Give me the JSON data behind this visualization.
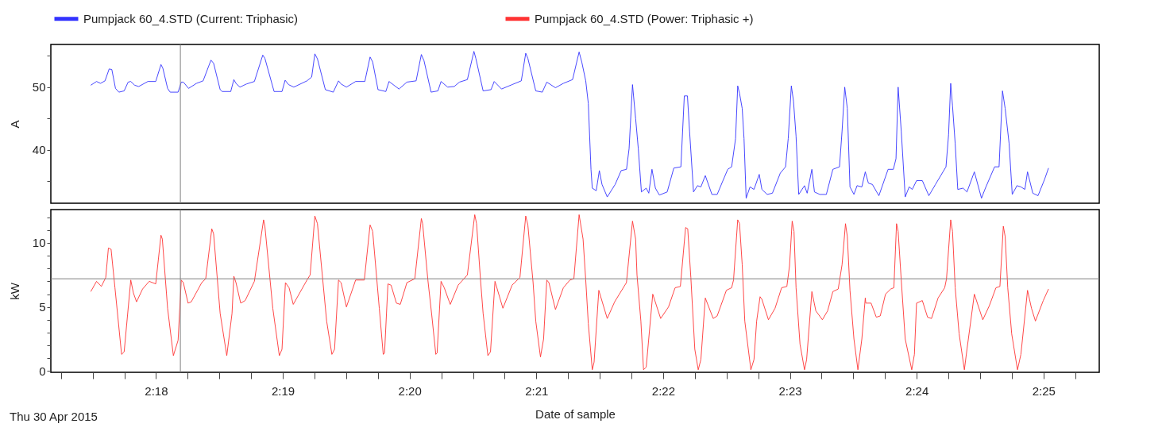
{
  "chart_data": [
    {
      "type": "line",
      "ylabel": "A",
      "legend": "top",
      "tick_labels": "y",
      "xlim": [
        2.28617,
        2.424
      ],
      "ylim": [
        31.5,
        56.8
      ],
      "yticks": [
        {
          "value": 35,
          "label": null
        },
        40,
        {
          "value": 45,
          "label": null
        },
        50,
        {
          "value": 55,
          "label": null
        }
      ],
      "ref_lines": [
        {
          "axis": "x",
          "value": 2.3032,
          "color": "#808080"
        }
      ],
      "series": [
        {
          "name": "Pumpjack 60_4.STD (Current: Triphasic)",
          "color": "#3333ff",
          "x": [
            2.29142,
            2.29218,
            2.2927,
            2.29329,
            2.29384,
            2.29419,
            2.29467,
            2.29512,
            2.29581,
            2.29633,
            2.29668,
            2.2972,
            2.29772,
            2.29893,
            2.29996,
            2.30065,
            2.3009,
            2.30152,
            2.30186,
            2.3029,
            2.30332,
            2.30359,
            2.30428,
            2.30532,
            2.30619,
            2.30722,
            2.30757,
            2.30843,
            2.30871,
            2.30982,
            2.31023,
            2.31051,
            2.31103,
            2.31189,
            2.31293,
            2.31403,
            2.31431,
            2.31552,
            2.31656,
            2.31697,
            2.31742,
            2.31811,
            2.31984,
            2.32046,
            2.32088,
            2.32122,
            2.32226,
            2.3233,
            2.32399,
            2.32433,
            2.32503,
            2.32624,
            2.32745,
            2.32814,
            2.32848,
            2.32918,
            2.33021,
            2.33063,
            2.33194,
            2.33298,
            2.33419,
            2.33488,
            2.33523,
            2.33616,
            2.33706,
            2.33747,
            2.33834,
            2.3392,
            2.33989,
            2.34093,
            2.34179,
            2.34204,
            2.343,
            2.34404,
            2.34446,
            2.34542,
            2.34681,
            2.34802,
            2.3486,
            2.34888,
            2.34992,
            2.35078,
            2.35137,
            2.35251,
            2.35355,
            2.35476,
            2.35562,
            2.35597,
            2.35649,
            2.35683,
            2.35718,
            2.35735,
            2.35787,
            2.35828,
            2.35863,
            2.35932,
            2.36036,
            2.36115,
            2.36185,
            2.36219,
            2.36264,
            2.36305,
            2.3634,
            2.36381,
            2.36444,
            2.36478,
            2.3652,
            2.36565,
            2.36617,
            2.3672,
            2.36807,
            2.369,
            2.36945,
            2.36986,
            2.37014,
            2.37066,
            2.37118,
            2.37163,
            2.37221,
            2.37308,
            2.37377,
            2.37446,
            2.37516,
            2.37567,
            2.37619,
            2.37647,
            2.37671,
            2.37706,
            2.3773,
            2.37758,
            2.37809,
            2.37861,
            2.3793,
            2.37965,
            2.38034,
            2.38103,
            2.38207,
            2.38276,
            2.38311,
            2.38352,
            2.3838,
            2.38414,
            2.38449,
            2.38525,
            2.3856,
            2.38622,
            2.38656,
            2.38726,
            2.38812,
            2.38898,
            2.38985,
            2.39019,
            2.39054,
            2.39088,
            2.39123,
            2.39175,
            2.39216,
            2.39279,
            2.39324,
            2.39365,
            2.39417,
            2.39503,
            2.39624,
            2.39693,
            2.39728,
            2.39756,
            2.39797,
            2.39849,
            2.39901,
            2.39942,
            2.39998,
            2.40074,
            2.4016,
            2.40247,
            2.40385,
            2.40419,
            2.40447,
            2.40471,
            2.40506,
            2.4054,
            2.4061,
            2.40661,
            2.40758,
            2.40852,
            2.40903,
            2.41024,
            2.41083,
            2.41128,
            2.41163,
            2.41215,
            2.41256,
            2.41318,
            2.4137,
            2.41422,
            2.41457,
            2.41526,
            2.41595,
            2.41681,
            2.41733
          ],
          "values": [
            50.3,
            50.9,
            50.6,
            51.0,
            52.9,
            52.8,
            49.8,
            49.2,
            49.4,
            50.8,
            50.9,
            50.3,
            50.1,
            50.9,
            50.9,
            53.6,
            53.0,
            49.8,
            49.2,
            49.2,
            50.8,
            50.8,
            49.8,
            50.6,
            51.0,
            54.3,
            53.8,
            49.6,
            49.3,
            49.3,
            51.2,
            50.6,
            50.0,
            50.5,
            50.9,
            55.1,
            54.6,
            49.3,
            49.3,
            51.1,
            50.4,
            50.0,
            51.0,
            51.6,
            55.3,
            54.5,
            49.6,
            49.2,
            51.0,
            50.5,
            50.0,
            50.9,
            50.9,
            54.8,
            54.0,
            49.6,
            49.3,
            50.9,
            49.7,
            50.8,
            51.0,
            55.2,
            54.2,
            49.2,
            49.4,
            50.9,
            50.0,
            50.1,
            50.8,
            51.2,
            55.7,
            54.6,
            49.4,
            49.6,
            50.9,
            49.7,
            50.4,
            51.0,
            55.4,
            54.6,
            49.4,
            49.2,
            50.8,
            49.9,
            50.6,
            51.2,
            55.6,
            54.0,
            51.0,
            47.4,
            36.9,
            33.9,
            33.5,
            36.7,
            34.5,
            32.5,
            34.5,
            36.7,
            36.9,
            40.2,
            50.4,
            45.0,
            40.2,
            33.3,
            33.9,
            33.1,
            36.9,
            33.9,
            32.8,
            33.3,
            37.1,
            37.3,
            48.6,
            48.6,
            43.0,
            33.3,
            34.3,
            34.1,
            35.9,
            32.9,
            32.9,
            34.9,
            36.9,
            37.3,
            41.8,
            50.2,
            49.0,
            46.6,
            41.8,
            32.3,
            34.1,
            33.7,
            36.1,
            33.7,
            32.9,
            33.1,
            36.3,
            37.3,
            41.8,
            50.2,
            47.8,
            42.2,
            32.9,
            34.3,
            33.1,
            36.9,
            33.3,
            32.9,
            32.9,
            36.9,
            37.3,
            43.0,
            50.0,
            46.6,
            34.1,
            32.9,
            34.3,
            34.1,
            36.5,
            34.7,
            34.5,
            32.7,
            36.9,
            36.9,
            38.6,
            50.0,
            43.0,
            32.5,
            34.1,
            33.7,
            35.1,
            35.1,
            32.7,
            34.5,
            37.3,
            42.4,
            50.6,
            47.0,
            41.0,
            33.7,
            33.9,
            33.3,
            36.5,
            32.3,
            33.9,
            37.3,
            37.3,
            49.4,
            46.6,
            41.0,
            32.9,
            34.3,
            34.1,
            33.7,
            36.5,
            33.1,
            32.7,
            35.3,
            37.1
          ]
        }
      ]
    },
    {
      "type": "line",
      "ylabel": "kW",
      "xlabel": "Date of sample",
      "legend": "top",
      "xlim": [
        2.28617,
        2.424
      ],
      "ylim": [
        -0.1,
        12.6
      ],
      "xticks": [
        {
          "value": 2.2875,
          "label": null
        },
        {
          "value": 2.29167,
          "label": null
        },
        {
          "value": 2.29583,
          "label": null
        },
        {
          "value": 2.3,
          "label": "2:18"
        },
        {
          "value": 2.30417,
          "label": null
        },
        {
          "value": 2.30833,
          "label": null
        },
        {
          "value": 2.3125,
          "label": null
        },
        {
          "value": 2.31667,
          "label": "2:19"
        },
        {
          "value": 2.32083,
          "label": null
        },
        {
          "value": 2.325,
          "label": null
        },
        {
          "value": 2.32917,
          "label": null
        },
        {
          "value": 2.33333,
          "label": "2:20"
        },
        {
          "value": 2.3375,
          "label": null
        },
        {
          "value": 2.34167,
          "label": null
        },
        {
          "value": 2.34583,
          "label": null
        },
        {
          "value": 2.35,
          "label": "2:21"
        },
        {
          "value": 2.35417,
          "label": null
        },
        {
          "value": 2.35833,
          "label": null
        },
        {
          "value": 2.3625,
          "label": null
        },
        {
          "value": 2.36667,
          "label": "2:22"
        },
        {
          "value": 2.37083,
          "label": null
        },
        {
          "value": 2.375,
          "label": null
        },
        {
          "value": 2.37917,
          "label": null
        },
        {
          "value": 2.38333,
          "label": "2:23"
        },
        {
          "value": 2.3875,
          "label": null
        },
        {
          "value": 2.39167,
          "label": null
        },
        {
          "value": 2.39583,
          "label": null
        },
        {
          "value": 2.4,
          "label": "2:24"
        },
        {
          "value": 2.40417,
          "label": null
        },
        {
          "value": 2.40833,
          "label": null
        },
        {
          "value": 2.4125,
          "label": null
        },
        {
          "value": 2.41667,
          "label": "2:25"
        },
        {
          "value": 2.42083,
          "label": null
        }
      ],
      "yticks": [
        0,
        {
          "value": 1,
          "label": null
        },
        {
          "value": 2,
          "label": null
        },
        {
          "value": 3,
          "label": null
        },
        {
          "value": 4,
          "label": null
        },
        5,
        {
          "value": 6,
          "label": null
        },
        {
          "value": 7,
          "label": null
        },
        {
          "value": 8,
          "label": null
        },
        {
          "value": 9,
          "label": null
        },
        10,
        {
          "value": 11,
          "label": null
        },
        {
          "value": 12,
          "label": null
        }
      ],
      "ref_lines": [
        {
          "axis": "x",
          "value": 2.3032,
          "color": "#808080"
        },
        {
          "axis": "y",
          "value": 7.2,
          "color": "#808080"
        }
      ],
      "annotations": [
        "Thu 30 Apr 2015"
      ],
      "series": [
        {
          "name": "Pumpjack 60_4.STD (Power: Triphasic +)",
          "color": "#ff3333",
          "x": [
            2.29142,
            2.29218,
            2.29281,
            2.29339,
            2.29374,
            2.29409,
            2.2946,
            2.29547,
            2.29581,
            2.29668,
            2.29702,
            2.29744,
            2.29823,
            2.2991,
            2.29996,
            2.30065,
            2.30083,
            2.30152,
            2.30228,
            2.3029,
            2.30332,
            2.30359,
            2.30421,
            2.30463,
            2.30601,
            2.30653,
            2.30733,
            2.30757,
            2.30843,
            2.3093,
            2.30999,
            2.31023,
            2.31051,
            2.31113,
            2.31172,
            2.31293,
            2.31414,
            2.31431,
            2.31535,
            2.31621,
            2.31656,
            2.31701,
            2.31749,
            2.31804,
            2.31984,
            2.32026,
            2.32088,
            2.32122,
            2.32243,
            2.32312,
            2.32347,
            2.32399,
            2.32433,
            2.32503,
            2.32624,
            2.32738,
            2.32814,
            2.32848,
            2.32935,
            2.32987,
            2.33004,
            2.33049,
            2.3309,
            2.3316,
            2.33211,
            2.33298,
            2.33402,
            2.33488,
            2.33505,
            2.33574,
            2.33626,
            2.33678,
            2.33695,
            2.33747,
            2.33789,
            2.33868,
            2.33972,
            2.34093,
            2.3419,
            2.34214,
            2.34266,
            2.343,
            2.34363,
            2.34397,
            2.34456,
            2.3456,
            2.34681,
            2.34784,
            2.3486,
            2.34888,
            2.34957,
            2.34992,
            2.35054,
            2.35095,
            2.35137,
            2.35165,
            2.35251,
            2.35355,
            2.35441,
            2.35493,
            2.35562,
            2.35614,
            2.35649,
            2.35683,
            2.35735,
            2.35759,
            2.35821,
            2.35856,
            2.35932,
            2.36029,
            2.36184,
            2.36264,
            2.36305,
            2.36323,
            2.36374,
            2.36409,
            2.36444,
            2.3653,
            2.36634,
            2.36737,
            2.36824,
            2.36893,
            2.36962,
            2.3699,
            2.37031,
            2.37083,
            2.37128,
            2.37163,
            2.37221,
            2.37325,
            2.37377,
            2.37498,
            2.37567,
            2.37592,
            2.37647,
            2.37671,
            2.37706,
            2.3774,
            2.3782,
            2.37861,
            2.37896,
            2.37941,
            2.37965,
            2.38051,
            2.38138,
            2.38224,
            2.38293,
            2.38328,
            2.38363,
            2.38387,
            2.38414,
            2.38466,
            2.38525,
            2.38553,
            2.38622,
            2.38674,
            2.3876,
            2.38829,
            2.38898,
            2.38968,
            2.39019,
            2.39064,
            2.39088,
            2.39123,
            2.39175,
            2.39227,
            2.39279,
            2.39324,
            2.39331,
            2.394,
            2.39469,
            2.39521,
            2.3959,
            2.39659,
            2.397,
            2.39735,
            2.39756,
            2.39797,
            2.39849,
            2.39935,
            2.3997,
            2.39998,
            2.40074,
            2.40143,
            2.40195,
            2.40281,
            2.40368,
            2.40392,
            2.40447,
            2.40471,
            2.40506,
            2.40558,
            2.40627,
            2.40661,
            2.40758,
            2.40869,
            2.40955,
            2.41042,
            2.41094,
            2.41139,
            2.41163,
            2.41197,
            2.41249,
            2.41325,
            2.4137,
            2.41457,
            2.41509,
            2.41561,
            2.41664,
            2.41733
          ],
          "values": [
            6.2,
            7.0,
            6.6,
            7.3,
            9.6,
            9.5,
            6.5,
            1.3,
            1.5,
            7.1,
            6.1,
            5.4,
            6.4,
            7.0,
            6.8,
            10.6,
            10.3,
            4.9,
            1.2,
            2.4,
            7.1,
            6.9,
            5.3,
            5.4,
            6.9,
            7.2,
            11.1,
            10.7,
            4.5,
            1.2,
            4.5,
            7.4,
            6.9,
            5.3,
            5.5,
            7.0,
            11.8,
            11.3,
            4.9,
            1.2,
            1.7,
            6.9,
            6.5,
            5.2,
            7.1,
            7.5,
            12.1,
            11.5,
            3.9,
            1.3,
            1.7,
            7.1,
            6.9,
            5.0,
            7.1,
            7.1,
            11.4,
            10.9,
            4.9,
            1.3,
            1.4,
            6.8,
            6.7,
            5.3,
            5.2,
            6.9,
            7.2,
            11.9,
            11.5,
            7.1,
            4.3,
            1.3,
            1.4,
            7.0,
            6.5,
            5.2,
            6.7,
            7.5,
            12.2,
            11.5,
            7.1,
            4.5,
            1.2,
            1.5,
            7.0,
            4.9,
            6.7,
            7.3,
            12.1,
            11.4,
            6.9,
            3.9,
            1.1,
            2.5,
            7.1,
            6.9,
            4.8,
            6.5,
            7.1,
            7.2,
            12.2,
            10.3,
            7.1,
            3.7,
            0.1,
            0.7,
            6.3,
            5.6,
            4.1,
            5.4,
            6.9,
            11.7,
            10.3,
            7.5,
            3.9,
            0.1,
            0.3,
            6.0,
            4.1,
            5.0,
            6.5,
            6.6,
            11.2,
            11.1,
            7.3,
            1.7,
            0.1,
            0.9,
            5.7,
            4.1,
            4.3,
            6.3,
            6.5,
            7.1,
            11.8,
            11.5,
            8.3,
            3.9,
            0.1,
            0.9,
            3.9,
            5.8,
            5.6,
            4.0,
            4.9,
            6.5,
            6.6,
            8.2,
            11.7,
            10.9,
            6.5,
            2.1,
            0.1,
            0.9,
            6.2,
            4.7,
            4.0,
            4.7,
            6.2,
            6.4,
            8.3,
            11.5,
            10.5,
            6.3,
            2.5,
            0.1,
            2.5,
            5.7,
            5.3,
            5.3,
            4.2,
            4.3,
            6.0,
            6.4,
            6.5,
            11.5,
            10.9,
            7.1,
            2.5,
            0.1,
            1.3,
            5.3,
            5.5,
            4.2,
            4.1,
            5.7,
            6.5,
            7.2,
            11.8,
            10.9,
            6.5,
            2.9,
            0.1,
            1.7,
            6.0,
            4.0,
            5.1,
            6.5,
            6.6,
            11.3,
            10.5,
            6.5,
            2.9,
            0.1,
            1.3,
            6.3,
            4.9,
            3.9,
            5.5,
            6.4
          ]
        }
      ]
    }
  ]
}
